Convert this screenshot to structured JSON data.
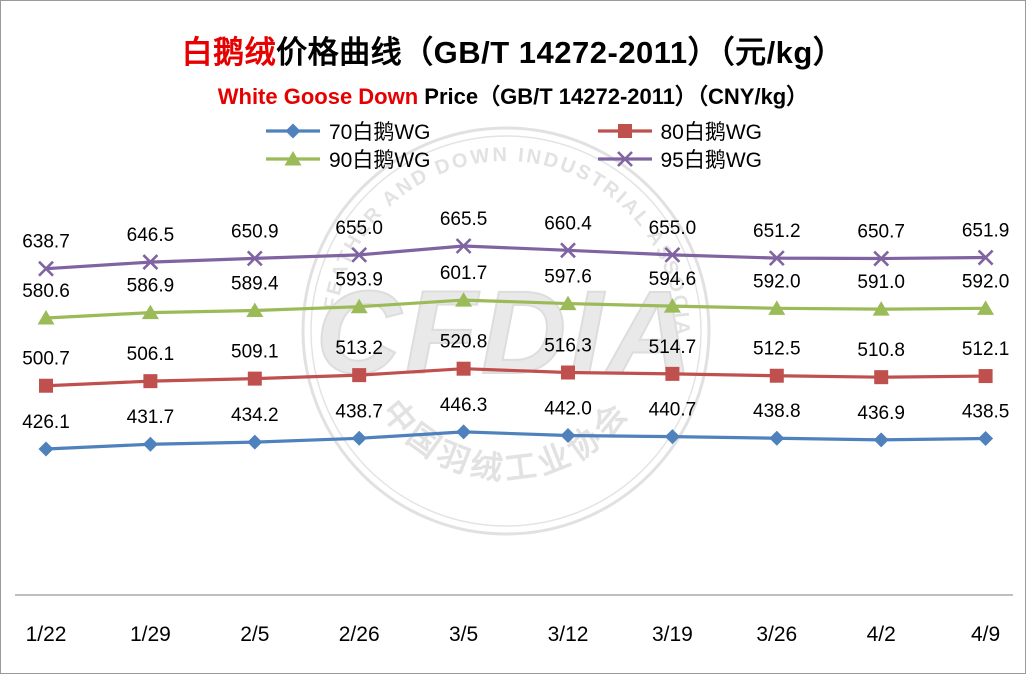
{
  "title": {
    "line1_red": "白鹅绒",
    "line1_black": "价格曲线（GB/T 14272-2011）（元/kg）",
    "line2_red": "White Goose Down",
    "line2_black": " Price（GB/T 14272-2011）（CNY/kg）",
    "red_color": "#e60000"
  },
  "watermark": {
    "top_text": "CHINA FEATHER AND DOWN INDUSTRIAL ASSOCIATION",
    "bottom_text": "中国羽绒工业协会",
    "center_text": "CFDIA"
  },
  "chart_data": {
    "type": "line",
    "title": "白鹅绒价格曲线（GB/T 14272-2011）（元/kg）",
    "subtitle": "White Goose Down Price（GB/T 14272-2011）（CNY/kg）",
    "legend_position": "top",
    "grid": false,
    "data_labels": true,
    "xlabel": "",
    "ylabel": "",
    "categories": [
      "1/22",
      "1/29",
      "2/5",
      "2/26",
      "3/5",
      "3/12",
      "3/19",
      "3/26",
      "4/2",
      "4/9"
    ],
    "series": [
      {
        "name": "70白鹅WG",
        "color": "#4F81BD",
        "marker": "diamond",
        "values": [
          426.1,
          431.7,
          434.2,
          438.7,
          446.3,
          442.0,
          440.7,
          438.8,
          436.9,
          438.5
        ]
      },
      {
        "name": "80白鹅WG",
        "color": "#C0504D",
        "marker": "square",
        "values": [
          500.7,
          506.1,
          509.1,
          513.2,
          520.8,
          516.3,
          514.7,
          512.5,
          510.8,
          512.1
        ]
      },
      {
        "name": "90白鹅WG",
        "color": "#9BBB59",
        "marker": "triangle",
        "values": [
          580.6,
          586.9,
          589.4,
          593.9,
          601.7,
          597.6,
          594.6,
          592.0,
          591.0,
          592.0
        ]
      },
      {
        "name": "95白鹅WG",
        "color": "#8064A2",
        "marker": "x",
        "values": [
          638.7,
          646.5,
          650.9,
          655.0,
          665.5,
          660.4,
          655.0,
          651.2,
          650.7,
          651.9
        ]
      }
    ]
  }
}
